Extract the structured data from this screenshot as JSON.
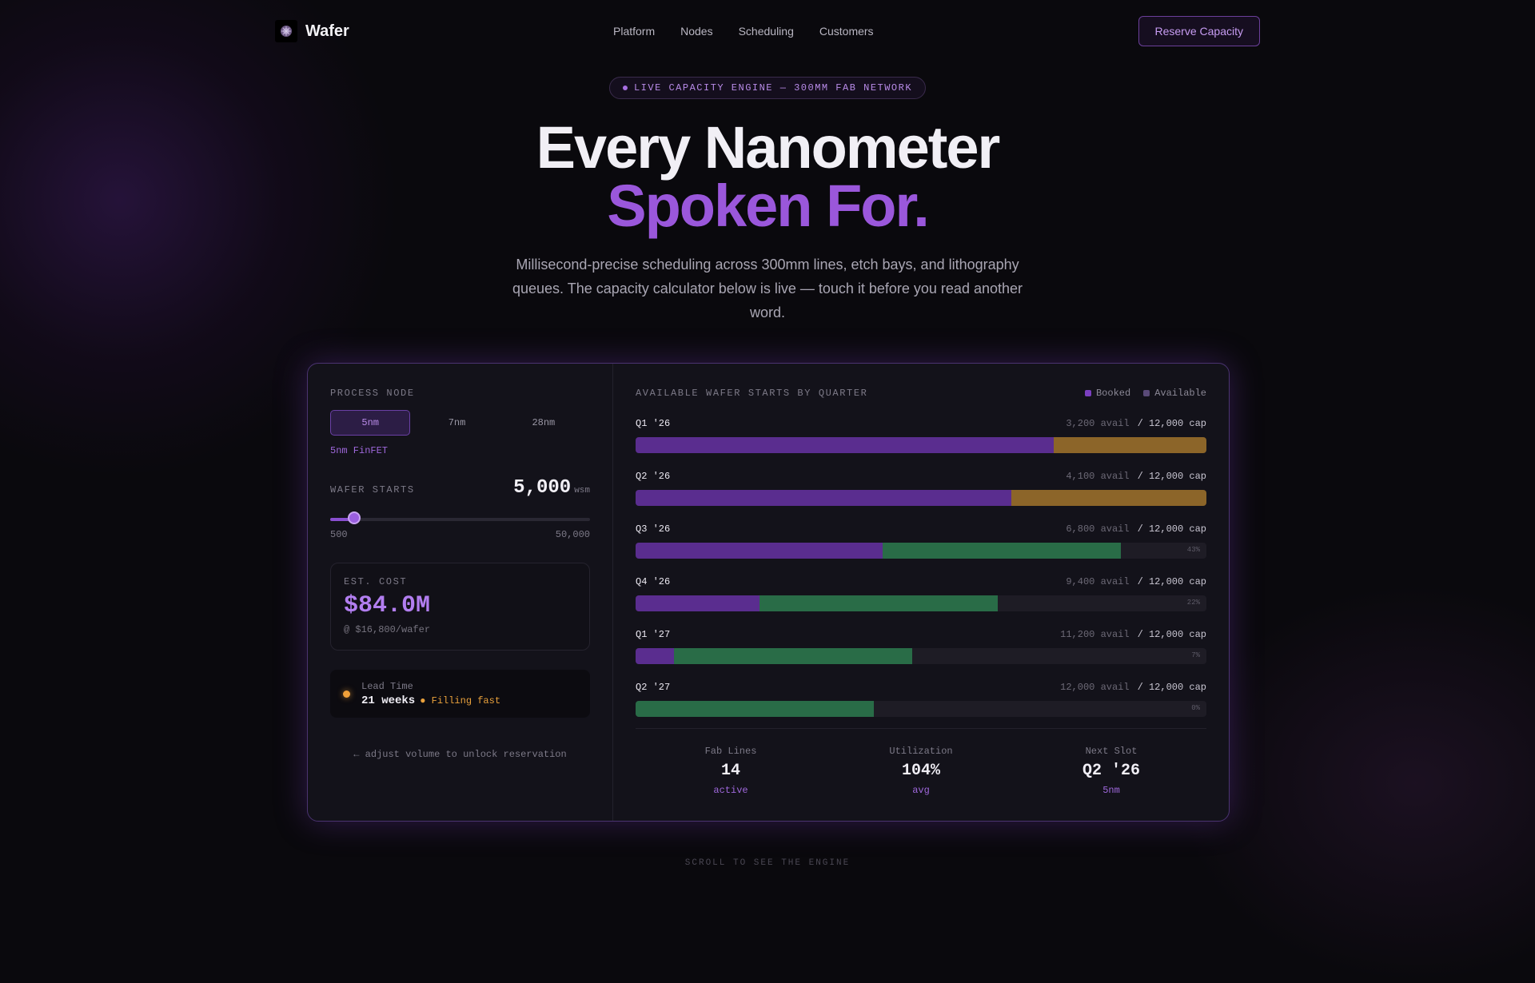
{
  "nav": {
    "brand": "Wafer",
    "links": [
      "Platform",
      "Nodes",
      "Scheduling",
      "Customers"
    ],
    "cta": "Reserve Capacity"
  },
  "hero": {
    "pill": "LIVE CAPACITY ENGINE — 300MM FAB NETWORK",
    "title_line1": "Every Nanometer",
    "title_line2": "Spoken For.",
    "subtitle": "Millisecond-precise scheduling across 300mm lines, etch bays, and lithography queues. The capacity calculator below is live — touch it before you read another word."
  },
  "calculator": {
    "process_node_label": "PROCESS NODE",
    "nodes": [
      "5nm",
      "7nm",
      "28nm"
    ],
    "selected_node": "5nm",
    "node_desc": "5nm FinFET",
    "wafer_starts_label": "WAFER STARTS",
    "wafer_starts_value": "5,000",
    "wafer_starts_unit": "wsm",
    "slider_min": "500",
    "slider_max": "50,000",
    "slider_fraction": 0.091,
    "est_cost_label": "EST. COST",
    "est_cost_value": "$84.0M",
    "est_cost_per": "@ $16,800/wafer",
    "lead_time_label": "Lead Time",
    "lead_time_value": "21 weeks",
    "lead_time_status": "● Filling fast",
    "hint": "← adjust volume to unlock reservation"
  },
  "availability": {
    "title": "AVAILABLE WAFER STARTS BY QUARTER",
    "legend": [
      {
        "label": "Booked",
        "color": "#7b3fc0"
      },
      {
        "label": "Available",
        "color": "#5a4a78"
      }
    ],
    "colors": {
      "booked": "#5a2d8f",
      "request_over": "#a0722a",
      "request_ok": "#2b7a4e",
      "track": "#1e1c25"
    },
    "quarters": [
      {
        "name": "Q1 '26",
        "avail": "3,200 avail",
        "cap": "/ 12,000 cap",
        "booked_frac": 0.733,
        "request_frac": 0.267,
        "request_over": true,
        "pct": ""
      },
      {
        "name": "Q2 '26",
        "avail": "4,100 avail",
        "cap": "/ 12,000 cap",
        "booked_frac": 0.658,
        "request_frac": 0.342,
        "request_over": true,
        "pct": ""
      },
      {
        "name": "Q3 '26",
        "avail": "6,800 avail",
        "cap": "/ 12,000 cap",
        "booked_frac": 0.433,
        "request_frac": 0.417,
        "request_over": false,
        "pct": "43%"
      },
      {
        "name": "Q4 '26",
        "avail": "9,400 avail",
        "cap": "/ 12,000 cap",
        "booked_frac": 0.217,
        "request_frac": 0.417,
        "request_over": false,
        "pct": "22%"
      },
      {
        "name": "Q1 '27",
        "avail": "11,200 avail",
        "cap": "/ 12,000 cap",
        "booked_frac": 0.067,
        "request_frac": 0.417,
        "request_over": false,
        "pct": "7%"
      },
      {
        "name": "Q2 '27",
        "avail": "12,000 avail",
        "cap": "/ 12,000 cap",
        "booked_frac": 0.0,
        "request_frac": 0.417,
        "request_over": false,
        "pct": "0%"
      }
    ],
    "stats": [
      {
        "label": "Fab Lines",
        "value": "14",
        "sub": "active"
      },
      {
        "label": "Utilization",
        "value": "104%",
        "sub": "avg"
      },
      {
        "label": "Next Slot",
        "value": "Q2 '26",
        "sub": "5nm"
      }
    ]
  },
  "scroll_hint": "SCROLL TO SEE THE ENGINE"
}
